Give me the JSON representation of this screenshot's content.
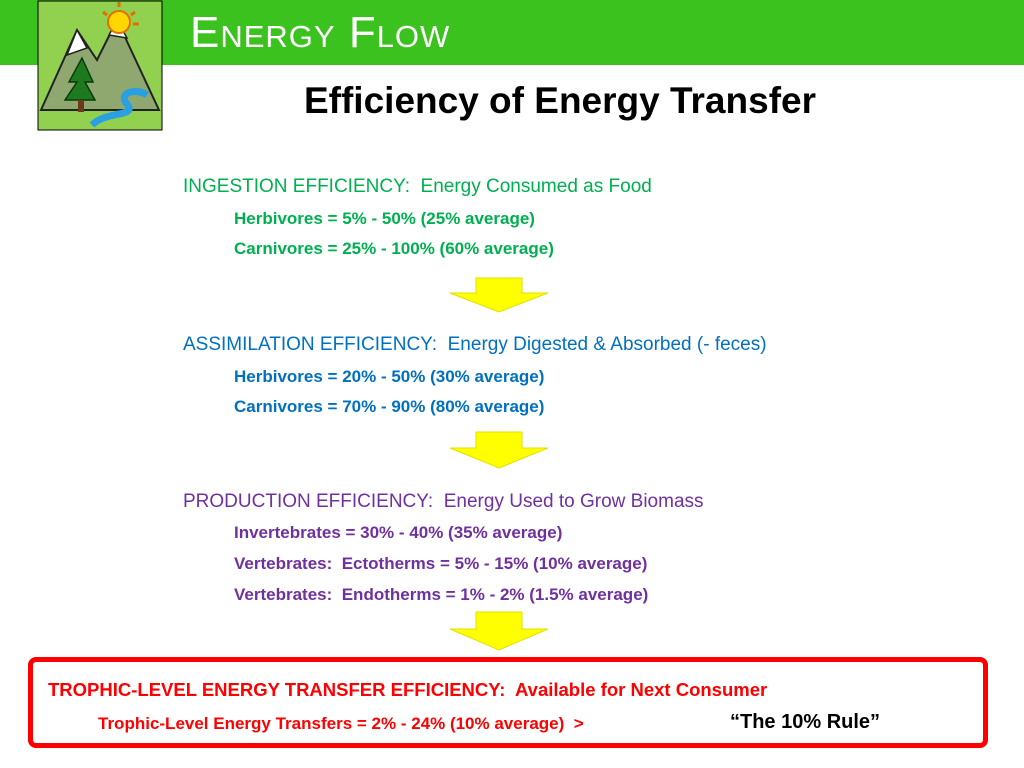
{
  "title": "Energy Flow",
  "subtitle": "Efficiency of Energy Transfer",
  "sections": [
    {
      "heading": "INGESTION EFFICIENCY:  Energy Consumed as Food",
      "lines": [
        "Herbivores = 5% - 50% (25% average)",
        "Carnivores = 25% - 100% (60% average)"
      ]
    },
    {
      "heading": "ASSIMILATION EFFICIENCY:  Energy Digested & Absorbed (- feces)",
      "lines": [
        "Herbivores = 20% - 50% (30% average)",
        "Carnivores = 70% - 90% (80% average)"
      ]
    },
    {
      "heading": "PRODUCTION EFFICIENCY:  Energy Used to Grow Biomass",
      "lines": [
        "Invertebrates = 30% - 40% (35% average)",
        "Vertebrates:  Ectotherms = 5% - 15% (10% average)",
        "Vertebrates:  Endotherms = 1% - 2% (1.5% average)"
      ]
    }
  ],
  "rule": {
    "heading": "TROPHIC-LEVEL ENERGY TRANSFER EFFICIENCY:  Available for Next Consumer",
    "line": "Trophic-Level Energy Transfers = 2% - 24% (10% average)  >",
    "quote": "“The 10% Rule”"
  }
}
